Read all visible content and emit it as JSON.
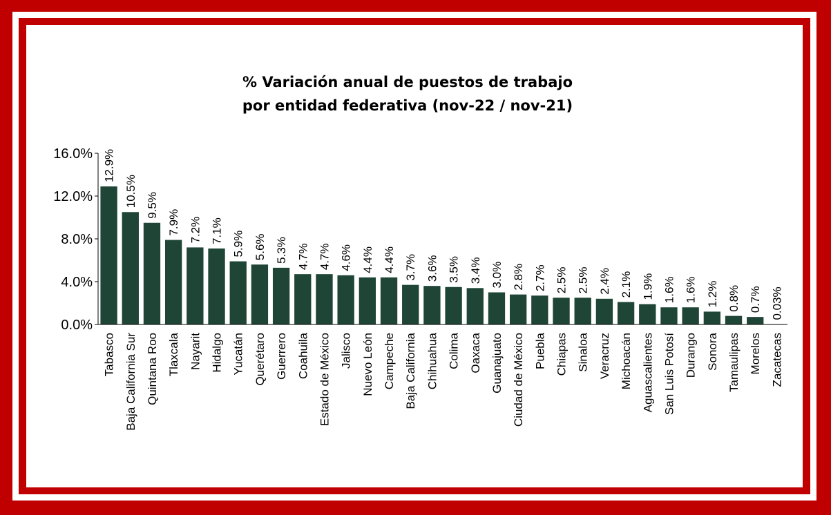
{
  "chart_data": {
    "type": "bar",
    "title": [
      "% Variación anual de puestos de trabajo",
      "por entidad federativa (nov-22 / nov-21)"
    ],
    "xlabel": "",
    "ylabel": "",
    "ylim": [
      0,
      16
    ],
    "yticks": [
      "0.0%",
      "4.0%",
      "8.0%",
      "12.0%",
      "16.0%"
    ],
    "yticks_values": [
      0,
      4,
      8,
      12,
      16
    ],
    "bar_color": "#1f4536",
    "categories": [
      "Tabasco",
      "Baja California Sur",
      "Quintana Roo",
      "Tlaxcala",
      "Nayarit",
      "Hidalgo",
      "Yucatán",
      "Querétaro",
      "Guerrero",
      "Coahuila",
      "Estado de México",
      "Jalisco",
      "Nuevo León",
      "Campeche",
      "Baja California",
      "Chihuahua",
      "Colima",
      "Oaxaca",
      "Guanajuato",
      "Ciudad de México",
      "Puebla",
      "Chiapas",
      "Sinaloa",
      "Veracruz",
      "Michoacán",
      "Aguascalientes",
      "San Luis Potosí",
      "Durango",
      "Sonora",
      "Tamaulipas",
      "Morelos",
      "Zacatecas"
    ],
    "values": [
      12.9,
      10.5,
      9.5,
      7.9,
      7.2,
      7.1,
      5.9,
      5.6,
      5.3,
      4.7,
      4.7,
      4.6,
      4.4,
      4.4,
      3.7,
      3.6,
      3.5,
      3.4,
      3.0,
      2.8,
      2.7,
      2.5,
      2.5,
      2.4,
      2.1,
      1.9,
      1.6,
      1.6,
      1.2,
      0.8,
      0.7,
      0.03
    ],
    "data_labels": [
      "12.9%",
      "10.5%",
      "9.5%",
      "7.9%",
      "7.2%",
      "7.1%",
      "5.9%",
      "5.6%",
      "5.3%",
      "4.7%",
      "4.7%",
      "4.6%",
      "4.4%",
      "4.4%",
      "3.7%",
      "3.6%",
      "3.5%",
      "3.4%",
      "3.0%",
      "2.8%",
      "2.7%",
      "2.5%",
      "2.5%",
      "2.4%",
      "2.1%",
      "1.9%",
      "1.6%",
      "1.6%",
      "1.2%",
      "0.8%",
      "0.7%",
      "0.03%"
    ]
  },
  "colors": {
    "frame": "#c00000",
    "bars": "#1f4536"
  }
}
